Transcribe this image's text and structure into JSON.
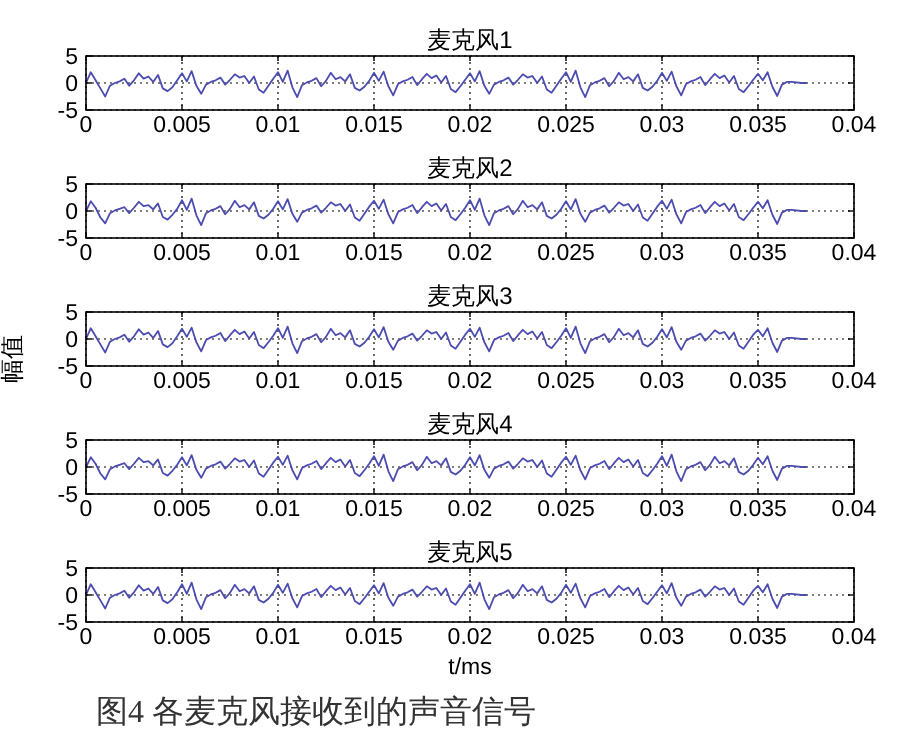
{
  "chart_data": [
    {
      "type": "line",
      "title": "麦克风1",
      "color": "#4b4bb0",
      "xlim": [
        0,
        0.04
      ],
      "xticks": [
        0,
        0.005,
        0.01,
        0.015,
        0.02,
        0.025,
        0.03,
        0.035,
        0.04
      ],
      "ylim": [
        -5,
        5
      ],
      "yticks": [
        -5,
        0,
        5
      ],
      "grid": true,
      "x": [
        0,
        0.00025,
        0.0005,
        0.00075,
        0.001,
        0.00125,
        0.0015,
        0.00175,
        0.002,
        0.00225,
        0.0025,
        0.00275,
        0.003,
        0.00325,
        0.0035,
        0.00375,
        0.004,
        0.00425,
        0.0045,
        0.00475,
        0.005,
        0.00525,
        0.0055,
        0.00575,
        0.006,
        0.00625,
        0.0065,
        0.00675,
        0.007,
        0.00725,
        0.0075,
        0.00775,
        0.008,
        0.00825,
        0.0085,
        0.00875,
        0.009,
        0.00925,
        0.0095,
        0.00975,
        0.01,
        0.01025,
        0.0105,
        0.01075,
        0.011,
        0.01125,
        0.0115,
        0.01175,
        0.012,
        0.01225,
        0.0125,
        0.01275,
        0.013,
        0.01325,
        0.0135,
        0.01375,
        0.014,
        0.01425,
        0.0145,
        0.01475,
        0.015,
        0.01525,
        0.0155,
        0.01575,
        0.016,
        0.01625,
        0.0165,
        0.01675,
        0.017,
        0.01725,
        0.0175,
        0.01775,
        0.018,
        0.01825,
        0.0185,
        0.01875,
        0.019,
        0.01925,
        0.0195,
        0.01975,
        0.02,
        0.02025,
        0.0205,
        0.02075,
        0.021,
        0.02125,
        0.0215,
        0.02175,
        0.022,
        0.02225,
        0.0225,
        0.02275,
        0.023,
        0.02325,
        0.0235,
        0.02375,
        0.024,
        0.02425,
        0.0245,
        0.02475,
        0.025,
        0.02525,
        0.0255,
        0.02575,
        0.026,
        0.02625,
        0.0265,
        0.02675,
        0.027,
        0.02725,
        0.0275,
        0.02775,
        0.028,
        0.02825,
        0.0285,
        0.02875,
        0.029,
        0.02925,
        0.0295,
        0.02975,
        0.03,
        0.03025,
        0.0305,
        0.03075,
        0.031,
        0.03125,
        0.0315,
        0.03175,
        0.032,
        0.03225,
        0.0325,
        0.03275,
        0.033,
        0.03325,
        0.0335,
        0.03375,
        0.034,
        0.03425,
        0.0345,
        0.03475,
        0.035,
        0.03525,
        0.0355,
        0.03575,
        0.036,
        0.03625,
        0.0365,
        0.03675,
        0.037,
        0.03725,
        0.0375
      ],
      "values": [
        0,
        2,
        0.5,
        -1,
        -2.5,
        -0.5,
        0,
        0.3,
        0.8,
        -0.5,
        0.5,
        1.8,
        0.8,
        1.2,
        0.2,
        1.5,
        -1,
        -1.5,
        -0.8,
        0.5,
        1.8,
        0.3,
        2.2,
        -0.5,
        -2,
        -0.3,
        0.2,
        0.5,
        1,
        -0.3,
        0.6,
        1.6,
        1,
        1.3,
        0,
        1.2,
        -1.2,
        -1.8,
        -0.5,
        0.8,
        2,
        0.2,
        2.3,
        -0.8,
        -2.6,
        -0.4,
        0.1,
        0.4,
        0.9,
        -0.6,
        0.4,
        1.9,
        0.7,
        1.1,
        0.3,
        1.6,
        -0.9,
        -1.4,
        -0.7,
        0.4,
        1.9,
        0.4,
        2.1,
        -0.6,
        -2.3,
        -0.2,
        0.3,
        0.6,
        1.1,
        -0.4,
        0.7,
        1.7,
        0.9,
        1.4,
        0.1,
        1.3,
        -1.1,
        -1.7,
        -0.6,
        0.6,
        1.8,
        0.3,
        2.2,
        -0.5,
        -2,
        -0.3,
        0.2,
        0.5,
        1,
        -0.3,
        0.6,
        1.6,
        1,
        1.3,
        0,
        1.2,
        -1.2,
        -1.8,
        -0.5,
        0.8,
        2,
        0.2,
        2.3,
        -0.8,
        -2.6,
        -0.4,
        0.1,
        0.4,
        0.9,
        -0.6,
        0.4,
        1.9,
        0.7,
        1.1,
        0.3,
        1.6,
        -0.9,
        -1.4,
        -0.7,
        0.4,
        1.9,
        0.4,
        2.1,
        -0.6,
        -2.3,
        -0.2,
        0.3,
        0.6,
        1.1,
        -0.4,
        0.7,
        1.7,
        0.9,
        1.4,
        0.1,
        1.3,
        -1.1,
        -1.7,
        -0.6,
        0.6,
        1.7,
        0.5,
        2,
        -0.7,
        -2.4,
        -0.3,
        0.2,
        0.2,
        0.1,
        0,
        0
      ]
    },
    {
      "type": "line",
      "title": "麦克风2",
      "color": "#4b4bb0",
      "xlim": [
        0,
        0.04
      ],
      "xticks": [
        0,
        0.005,
        0.01,
        0.015,
        0.02,
        0.025,
        0.03,
        0.035,
        0.04
      ],
      "ylim": [
        -5,
        5
      ],
      "yticks": [
        -5,
        0,
        5
      ],
      "grid": true,
      "x": [
        0,
        0.00025,
        0.0005,
        0.00075,
        0.001,
        0.00125,
        0.0015,
        0.00175,
        0.002,
        0.00225,
        0.0025,
        0.00275,
        0.003,
        0.00325,
        0.0035,
        0.00375,
        0.004,
        0.00425,
        0.0045,
        0.00475,
        0.005,
        0.00525,
        0.0055,
        0.00575,
        0.006,
        0.00625,
        0.0065,
        0.00675,
        0.007,
        0.00725,
        0.0075,
        0.00775,
        0.008,
        0.00825,
        0.0085,
        0.00875,
        0.009,
        0.00925,
        0.0095,
        0.00975,
        0.01,
        0.01025,
        0.0105,
        0.01075,
        0.011,
        0.01125,
        0.0115,
        0.01175,
        0.012,
        0.01225,
        0.0125,
        0.01275,
        0.013,
        0.01325,
        0.0135,
        0.01375,
        0.014,
        0.01425,
        0.0145,
        0.01475,
        0.015,
        0.01525,
        0.0155,
        0.01575,
        0.016,
        0.01625,
        0.0165,
        0.01675,
        0.017,
        0.01725,
        0.0175,
        0.01775,
        0.018,
        0.01825,
        0.0185,
        0.01875,
        0.019,
        0.01925,
        0.0195,
        0.01975,
        0.02,
        0.02025,
        0.0205,
        0.02075,
        0.021,
        0.02125,
        0.0215,
        0.02175,
        0.022,
        0.02225,
        0.0225,
        0.02275,
        0.023,
        0.02325,
        0.0235,
        0.02375,
        0.024,
        0.02425,
        0.0245,
        0.02475,
        0.025,
        0.02525,
        0.0255,
        0.02575,
        0.026,
        0.02625,
        0.0265,
        0.02675,
        0.027,
        0.02725,
        0.0275,
        0.02775,
        0.028,
        0.02825,
        0.0285,
        0.02875,
        0.029,
        0.02925,
        0.0295,
        0.02975,
        0.03,
        0.03025,
        0.0305,
        0.03075,
        0.031,
        0.03125,
        0.0315,
        0.03175,
        0.032,
        0.03225,
        0.0325,
        0.03275,
        0.033,
        0.03325,
        0.0335,
        0.03375,
        0.034,
        0.03425,
        0.0345,
        0.03475,
        0.035,
        0.03525,
        0.0355,
        0.03575,
        0.036,
        0.03625,
        0.0365,
        0.03675,
        0.037,
        0.03725,
        0.0375
      ],
      "values": [
        0,
        1.8,
        0.6,
        -1.2,
        -2.3,
        -0.4,
        0.1,
        0.4,
        0.7,
        -0.4,
        0.6,
        1.7,
        0.9,
        1.1,
        0.3,
        1.4,
        -1.1,
        -1.6,
        -0.7,
        0.4,
        2,
        0.2,
        2.3,
        -0.8,
        -2.6,
        -0.4,
        0.1,
        0.4,
        0.9,
        -0.6,
        0.4,
        1.9,
        0.7,
        1.1,
        0.3,
        1.6,
        -0.9,
        -1.4,
        -0.7,
        0.4,
        1.8,
        0.3,
        2.2,
        -0.5,
        -2,
        -0.3,
        0.2,
        0.5,
        1,
        -0.3,
        0.6,
        1.6,
        1,
        1.3,
        0,
        1.2,
        -1.2,
        -1.8,
        -0.5,
        0.8,
        1.9,
        0.4,
        2.1,
        -0.6,
        -2.3,
        -0.2,
        0.3,
        0.6,
        1.1,
        -0.4,
        0.7,
        1.7,
        0.9,
        1.4,
        0.1,
        1.3,
        -1.1,
        -1.7,
        -0.6,
        0.6,
        2,
        0.2,
        2.3,
        -0.8,
        -2.6,
        -0.4,
        0.1,
        0.4,
        0.9,
        -0.6,
        0.4,
        1.9,
        0.7,
        1.1,
        0.3,
        1.6,
        -0.9,
        -1.4,
        -0.7,
        0.4,
        1.8,
        0.3,
        2.2,
        -0.5,
        -2,
        -0.3,
        0.2,
        0.5,
        1,
        -0.3,
        0.6,
        1.6,
        1,
        1.3,
        0,
        1.2,
        -1.2,
        -1.8,
        -0.5,
        0.8,
        1.9,
        0.4,
        2.1,
        -0.6,
        -2.3,
        -0.2,
        0.3,
        0.6,
        1.1,
        -0.4,
        0.7,
        1.7,
        0.9,
        1.4,
        0.1,
        1.3,
        -1.1,
        -1.7,
        -0.6,
        0.6,
        1.7,
        0.5,
        2,
        -0.7,
        -2.4,
        -0.3,
        0.2,
        0.2,
        0.1,
        0,
        0
      ]
    },
    {
      "type": "line",
      "title": "麦克风3",
      "ylabel": "幅值",
      "color": "#4b4bb0",
      "xlim": [
        0,
        0.04
      ],
      "xticks": [
        0,
        0.005,
        0.01,
        0.015,
        0.02,
        0.025,
        0.03,
        0.035,
        0.04
      ],
      "ylim": [
        -5,
        5
      ],
      "yticks": [
        -5,
        0,
        5
      ],
      "grid": true,
      "x": [
        0,
        0.00025,
        0.0005,
        0.00075,
        0.001,
        0.00125,
        0.0015,
        0.00175,
        0.002,
        0.00225,
        0.0025,
        0.00275,
        0.003,
        0.00325,
        0.0035,
        0.00375,
        0.004,
        0.00425,
        0.0045,
        0.00475,
        0.005,
        0.00525,
        0.0055,
        0.00575,
        0.006,
        0.00625,
        0.0065,
        0.00675,
        0.007,
        0.00725,
        0.0075,
        0.00775,
        0.008,
        0.00825,
        0.0085,
        0.00875,
        0.009,
        0.00925,
        0.0095,
        0.00975,
        0.01,
        0.01025,
        0.0105,
        0.01075,
        0.011,
        0.01125,
        0.0115,
        0.01175,
        0.012,
        0.01225,
        0.0125,
        0.01275,
        0.013,
        0.01325,
        0.0135,
        0.01375,
        0.014,
        0.01425,
        0.0145,
        0.01475,
        0.015,
        0.01525,
        0.0155,
        0.01575,
        0.016,
        0.01625,
        0.0165,
        0.01675,
        0.017,
        0.01725,
        0.0175,
        0.01775,
        0.018,
        0.01825,
        0.0185,
        0.01875,
        0.019,
        0.01925,
        0.0195,
        0.01975,
        0.02,
        0.02025,
        0.0205,
        0.02075,
        0.021,
        0.02125,
        0.0215,
        0.02175,
        0.022,
        0.02225,
        0.0225,
        0.02275,
        0.023,
        0.02325,
        0.0235,
        0.02375,
        0.024,
        0.02425,
        0.0245,
        0.02475,
        0.025,
        0.02525,
        0.0255,
        0.02575,
        0.026,
        0.02625,
        0.0265,
        0.02675,
        0.027,
        0.02725,
        0.0275,
        0.02775,
        0.028,
        0.02825,
        0.0285,
        0.02875,
        0.029,
        0.02925,
        0.0295,
        0.02975,
        0.03,
        0.03025,
        0.0305,
        0.03075,
        0.031,
        0.03125,
        0.0315,
        0.03175,
        0.032,
        0.03225,
        0.0325,
        0.03275,
        0.033,
        0.03325,
        0.0335,
        0.03375,
        0.034,
        0.03425,
        0.0345,
        0.03475,
        0.035,
        0.03525,
        0.0355,
        0.03575,
        0.036,
        0.03625,
        0.0365,
        0.03675,
        0.037,
        0.03725,
        0.0375
      ],
      "values": [
        0,
        2,
        0.5,
        -1,
        -2.5,
        -0.5,
        0,
        0.3,
        0.8,
        -0.5,
        0.5,
        1.8,
        0.8,
        1.2,
        0.2,
        1.5,
        -1,
        -1.5,
        -0.8,
        0.5,
        1.9,
        0.4,
        2.1,
        -0.6,
        -2.3,
        -0.2,
        0.3,
        0.6,
        1.1,
        -0.4,
        0.7,
        1.7,
        0.9,
        1.4,
        0.1,
        1.3,
        -1.1,
        -1.7,
        -0.6,
        0.6,
        2,
        0.2,
        2.3,
        -0.8,
        -2.6,
        -0.4,
        0.1,
        0.4,
        0.9,
        -0.6,
        0.4,
        1.9,
        0.7,
        1.1,
        0.3,
        1.6,
        -0.9,
        -1.4,
        -0.7,
        0.4,
        1.8,
        0.3,
        2.2,
        -0.5,
        -2,
        -0.3,
        0.2,
        0.5,
        1,
        -0.3,
        0.6,
        1.6,
        1,
        1.3,
        0,
        1.2,
        -1.2,
        -1.8,
        -0.5,
        0.8,
        1.9,
        0.4,
        2.1,
        -0.6,
        -2.3,
        -0.2,
        0.3,
        0.6,
        1.1,
        -0.4,
        0.7,
        1.7,
        0.9,
        1.4,
        0.1,
        1.3,
        -1.1,
        -1.7,
        -0.6,
        0.6,
        2,
        0.2,
        2.3,
        -0.8,
        -2.6,
        -0.4,
        0.1,
        0.4,
        0.9,
        -0.6,
        0.4,
        1.9,
        0.7,
        1.1,
        0.3,
        1.6,
        -0.9,
        -1.4,
        -0.7,
        0.4,
        1.8,
        0.3,
        2.2,
        -0.5,
        -2,
        -0.3,
        0.2,
        0.5,
        1,
        -0.3,
        0.6,
        1.6,
        1,
        1.3,
        0,
        1.2,
        -1.2,
        -1.8,
        -0.5,
        0.8,
        1.7,
        0.5,
        2,
        -0.7,
        -2.4,
        -0.3,
        0.2,
        0.2,
        0.1,
        0,
        0
      ]
    },
    {
      "type": "line",
      "title": "麦克风4",
      "color": "#4b4bb0",
      "xlim": [
        0,
        0.04
      ],
      "xticks": [
        0,
        0.005,
        0.01,
        0.015,
        0.02,
        0.025,
        0.03,
        0.035,
        0.04
      ],
      "ylim": [
        -5,
        5
      ],
      "yticks": [
        -5,
        0,
        5
      ],
      "grid": true,
      "x": [
        0,
        0.00025,
        0.0005,
        0.00075,
        0.001,
        0.00125,
        0.0015,
        0.00175,
        0.002,
        0.00225,
        0.0025,
        0.00275,
        0.003,
        0.00325,
        0.0035,
        0.00375,
        0.004,
        0.00425,
        0.0045,
        0.00475,
        0.005,
        0.00525,
        0.0055,
        0.00575,
        0.006,
        0.00625,
        0.0065,
        0.00675,
        0.007,
        0.00725,
        0.0075,
        0.00775,
        0.008,
        0.00825,
        0.0085,
        0.00875,
        0.009,
        0.00925,
        0.0095,
        0.00975,
        0.01,
        0.01025,
        0.0105,
        0.01075,
        0.011,
        0.01125,
        0.0115,
        0.01175,
        0.012,
        0.01225,
        0.0125,
        0.01275,
        0.013,
        0.01325,
        0.0135,
        0.01375,
        0.014,
        0.01425,
        0.0145,
        0.01475,
        0.015,
        0.01525,
        0.0155,
        0.01575,
        0.016,
        0.01625,
        0.0165,
        0.01675,
        0.017,
        0.01725,
        0.0175,
        0.01775,
        0.018,
        0.01825,
        0.0185,
        0.01875,
        0.019,
        0.01925,
        0.0195,
        0.01975,
        0.02,
        0.02025,
        0.0205,
        0.02075,
        0.021,
        0.02125,
        0.0215,
        0.02175,
        0.022,
        0.02225,
        0.0225,
        0.02275,
        0.023,
        0.02325,
        0.0235,
        0.02375,
        0.024,
        0.02425,
        0.0245,
        0.02475,
        0.025,
        0.02525,
        0.0255,
        0.02575,
        0.026,
        0.02625,
        0.0265,
        0.02675,
        0.027,
        0.02725,
        0.0275,
        0.02775,
        0.028,
        0.02825,
        0.0285,
        0.02875,
        0.029,
        0.02925,
        0.0295,
        0.02975,
        0.03,
        0.03025,
        0.0305,
        0.03075,
        0.031,
        0.03125,
        0.0315,
        0.03175,
        0.032,
        0.03225,
        0.0325,
        0.03275,
        0.033,
        0.03325,
        0.0335,
        0.03375,
        0.034,
        0.03425,
        0.0345,
        0.03475,
        0.035,
        0.03525,
        0.0355,
        0.03575,
        0.036,
        0.03625,
        0.0365,
        0.03675,
        0.037,
        0.03725,
        0.0375
      ],
      "values": [
        0,
        1.8,
        0.6,
        -1.2,
        -2.3,
        -0.4,
        0.1,
        0.4,
        0.7,
        -0.4,
        0.6,
        1.7,
        0.9,
        1.1,
        0.3,
        1.4,
        -1.1,
        -1.6,
        -0.7,
        0.4,
        1.8,
        0.3,
        2.2,
        -0.5,
        -2,
        -0.3,
        0.2,
        0.5,
        1,
        -0.3,
        0.6,
        1.6,
        1,
        1.3,
        0,
        1.2,
        -1.2,
        -1.8,
        -0.5,
        0.8,
        1.9,
        0.4,
        2.1,
        -0.6,
        -2.3,
        -0.2,
        0.3,
        0.6,
        1.1,
        -0.4,
        0.7,
        1.7,
        0.9,
        1.4,
        0.1,
        1.3,
        -1.1,
        -1.7,
        -0.6,
        0.6,
        2,
        0.2,
        2.3,
        -0.8,
        -2.6,
        -0.4,
        0.1,
        0.4,
        0.9,
        -0.6,
        0.4,
        1.9,
        0.7,
        1.1,
        0.3,
        1.6,
        -0.9,
        -1.4,
        -0.7,
        0.4,
        1.8,
        0.3,
        2.2,
        -0.5,
        -2,
        -0.3,
        0.2,
        0.5,
        1,
        -0.3,
        0.6,
        1.6,
        1,
        1.3,
        0,
        1.2,
        -1.2,
        -1.8,
        -0.5,
        0.8,
        1.9,
        0.4,
        2.1,
        -0.6,
        -2.3,
        -0.2,
        0.3,
        0.6,
        1.1,
        -0.4,
        0.7,
        1.7,
        0.9,
        1.4,
        0.1,
        1.3,
        -1.1,
        -1.7,
        -0.6,
        0.6,
        2,
        0.2,
        2.3,
        -0.8,
        -2.6,
        -0.4,
        0.1,
        0.4,
        0.9,
        -0.6,
        0.4,
        1.9,
        0.7,
        1.1,
        0.3,
        1.6,
        -0.9,
        -1.4,
        -0.7,
        0.4,
        1.7,
        0.5,
        2,
        -0.7,
        -2.4,
        -0.3,
        0.2,
        0.2,
        0.1,
        0,
        0
      ]
    },
    {
      "type": "line",
      "title": "麦克风5",
      "xlabel": "t/ms",
      "annotations": [
        "图4 各麦克风接收到的声音信号"
      ],
      "color": "#4b4bb0",
      "xlim": [
        0,
        0.04
      ],
      "xticks": [
        0,
        0.005,
        0.01,
        0.015,
        0.02,
        0.025,
        0.03,
        0.035,
        0.04
      ],
      "ylim": [
        -5,
        5
      ],
      "yticks": [
        -5,
        0,
        5
      ],
      "grid": true,
      "x": [
        0,
        0.00025,
        0.0005,
        0.00075,
        0.001,
        0.00125,
        0.0015,
        0.00175,
        0.002,
        0.00225,
        0.0025,
        0.00275,
        0.003,
        0.00325,
        0.0035,
        0.00375,
        0.004,
        0.00425,
        0.0045,
        0.00475,
        0.005,
        0.00525,
        0.0055,
        0.00575,
        0.006,
        0.00625,
        0.0065,
        0.00675,
        0.007,
        0.00725,
        0.0075,
        0.00775,
        0.008,
        0.00825,
        0.0085,
        0.00875,
        0.009,
        0.00925,
        0.0095,
        0.00975,
        0.01,
        0.01025,
        0.0105,
        0.01075,
        0.011,
        0.01125,
        0.0115,
        0.01175,
        0.012,
        0.01225,
        0.0125,
        0.01275,
        0.013,
        0.01325,
        0.0135,
        0.01375,
        0.014,
        0.01425,
        0.0145,
        0.01475,
        0.015,
        0.01525,
        0.0155,
        0.01575,
        0.016,
        0.01625,
        0.0165,
        0.01675,
        0.017,
        0.01725,
        0.0175,
        0.01775,
        0.018,
        0.01825,
        0.0185,
        0.01875,
        0.019,
        0.01925,
        0.0195,
        0.01975,
        0.02,
        0.02025,
        0.0205,
        0.02075,
        0.021,
        0.02125,
        0.0215,
        0.02175,
        0.022,
        0.02225,
        0.0225,
        0.02275,
        0.023,
        0.02325,
        0.0235,
        0.02375,
        0.024,
        0.02425,
        0.0245,
        0.02475,
        0.025,
        0.02525,
        0.0255,
        0.02575,
        0.026,
        0.02625,
        0.0265,
        0.02675,
        0.027,
        0.02725,
        0.0275,
        0.02775,
        0.028,
        0.02825,
        0.0285,
        0.02875,
        0.029,
        0.02925,
        0.0295,
        0.02975,
        0.03,
        0.03025,
        0.0305,
        0.03075,
        0.031,
        0.03125,
        0.0315,
        0.03175,
        0.032,
        0.03225,
        0.0325,
        0.03275,
        0.033,
        0.03325,
        0.0335,
        0.03375,
        0.034,
        0.03425,
        0.0345,
        0.03475,
        0.035,
        0.03525,
        0.0355,
        0.03575,
        0.036,
        0.03625,
        0.0365,
        0.03675,
        0.037,
        0.03725,
        0.0375
      ],
      "values": [
        0,
        2,
        0.5,
        -1,
        -2.5,
        -0.5,
        0,
        0.3,
        0.8,
        -0.5,
        0.5,
        1.8,
        0.8,
        1.2,
        0.2,
        1.5,
        -1,
        -1.5,
        -0.8,
        0.5,
        2,
        0.2,
        2.3,
        -0.8,
        -2.6,
        -0.4,
        0.1,
        0.4,
        0.9,
        -0.6,
        0.4,
        1.9,
        0.7,
        1.1,
        0.3,
        1.6,
        -0.9,
        -1.4,
        -0.7,
        0.4,
        1.9,
        0.4,
        2.1,
        -0.6,
        -2.3,
        -0.2,
        0.3,
        0.6,
        1.1,
        -0.4,
        0.7,
        1.7,
        0.9,
        1.4,
        0.1,
        1.3,
        -1.1,
        -1.7,
        -0.6,
        0.6,
        1.8,
        0.3,
        2.2,
        -0.5,
        -2,
        -0.3,
        0.2,
        0.5,
        1,
        -0.3,
        0.6,
        1.6,
        1,
        1.3,
        0,
        1.2,
        -1.2,
        -1.8,
        -0.5,
        0.8,
        2,
        0.2,
        2.3,
        -0.8,
        -2.6,
        -0.4,
        0.1,
        0.4,
        0.9,
        -0.6,
        0.4,
        1.9,
        0.7,
        1.1,
        0.3,
        1.6,
        -0.9,
        -1.4,
        -0.7,
        0.4,
        1.9,
        0.4,
        2.1,
        -0.6,
        -2.3,
        -0.2,
        0.3,
        0.6,
        1.1,
        -0.4,
        0.7,
        1.7,
        0.9,
        1.4,
        0.1,
        1.3,
        -1.1,
        -1.7,
        -0.6,
        0.6,
        1.8,
        0.3,
        2.2,
        -0.5,
        -2,
        -0.3,
        0.2,
        0.5,
        1,
        -0.3,
        0.6,
        1.6,
        1,
        1.3,
        0,
        1.2,
        -1.2,
        -1.8,
        -0.5,
        0.8,
        1.7,
        0.5,
        2,
        -0.7,
        -2.4,
        -0.3,
        0.2,
        0.2,
        0.1,
        0,
        0
      ]
    }
  ]
}
